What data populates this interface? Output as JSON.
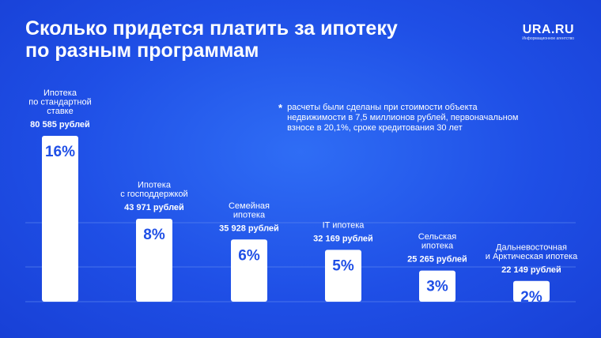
{
  "header": {
    "title_line1": "Сколько придется платить за ипотеку",
    "title_line2": "по разным программам",
    "brand": "URA.RU",
    "brand_sub": "Информационное агентство"
  },
  "note": {
    "mark": "*",
    "text": "расчеты были сделаны при стоимости объекта\nнедвижимости в 7,5 миллионов рублей, первоначальном\nвзносе в 20,1%, сроке кредитования 30 лет"
  },
  "colors": {
    "background": "#1f4fe6",
    "bar": "#ffffff",
    "bar_text": "#1f4fe6",
    "gridline": "#5a84f0"
  },
  "chart_data": {
    "type": "bar",
    "categories": [
      [
        "Ипотека",
        "по стандартной",
        "ставке"
      ],
      [
        "Ипотека",
        "с господдержкой"
      ],
      [
        "Семейная",
        "ипотека"
      ],
      [
        "IT ипотека"
      ],
      [
        "Сельская",
        "ипотека"
      ],
      [
        "Дальневосточная",
        "и Арктическая ипотека"
      ]
    ],
    "values": [
      16,
      8,
      6,
      5,
      3,
      2
    ],
    "value_labels": [
      "16%",
      "8%",
      "6%",
      "5%",
      "3%",
      "2%"
    ],
    "payments": [
      "80 585 рублей",
      "43 971 рублей",
      "35 928 рублей",
      "32 169 рублей",
      "25 265 рублей",
      "22 149 рублей"
    ],
    "unit": "%",
    "ylim": [
      0,
      16
    ],
    "grid": true
  }
}
